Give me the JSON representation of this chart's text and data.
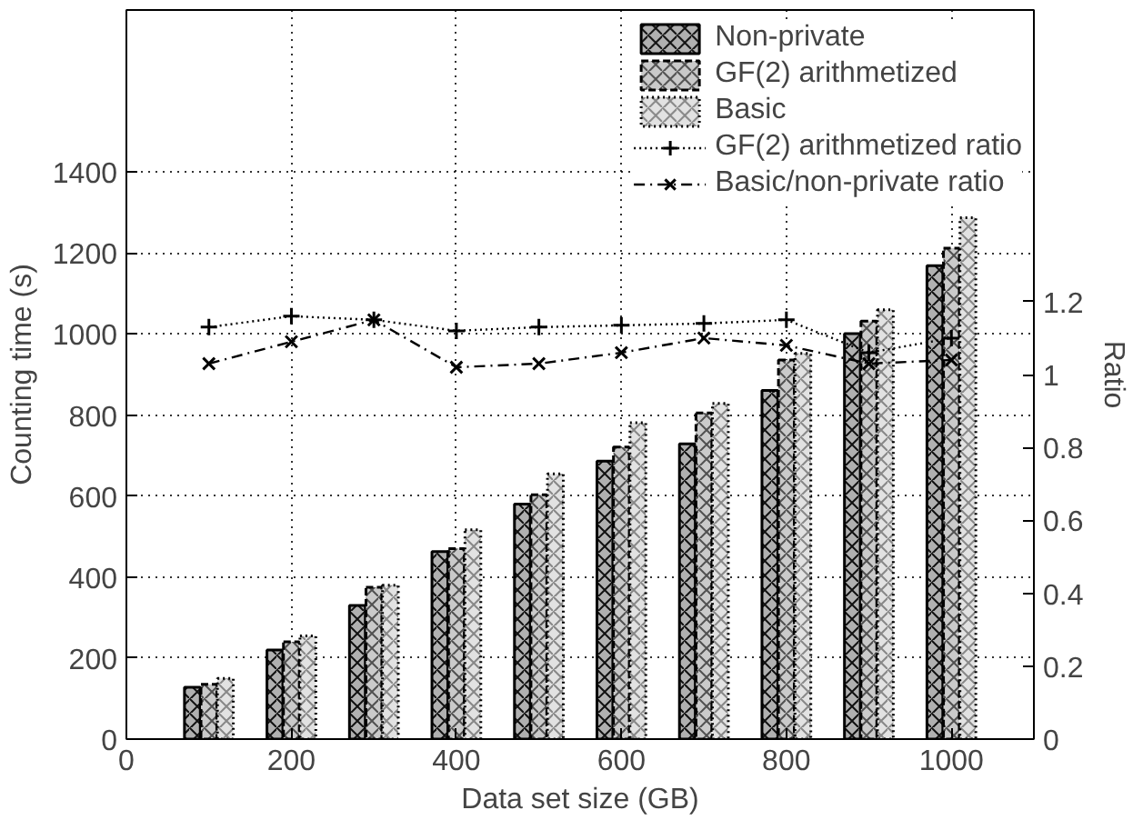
{
  "chart_data": {
    "type": "bar",
    "xlabel": "Data set size (GB)",
    "ylabel": "Counting time (s)",
    "y2label": "Ratio",
    "x": [
      100,
      200,
      300,
      400,
      500,
      600,
      700,
      800,
      900,
      1000
    ],
    "series": [
      {
        "name": "Non-private",
        "color": "#b0b0b0",
        "line_style": "solid",
        "values": [
          128,
          220,
          330,
          463,
          580,
          686,
          729,
          861,
          1001,
          1169
        ]
      },
      {
        "name": "GF(2) arithmetized",
        "color": "#cacaca",
        "line_style": "dashed",
        "values": [
          135,
          240,
          375,
          470,
          603,
          721,
          805,
          936,
          1032,
          1212
        ]
      },
      {
        "name": "Basic",
        "color": "#e2e2e2",
        "line_style": "dotted",
        "values": [
          150,
          255,
          380,
          517,
          655,
          781,
          829,
          952,
          1060,
          1287
        ]
      },
      {
        "name": "GF(2) arithmetized ratio",
        "type": "line",
        "axis": "y2",
        "color": "#000000",
        "line_style": "dotted",
        "marker": "cross",
        "values": [
          1.13,
          1.16,
          1.15,
          1.12,
          1.13,
          1.135,
          1.14,
          1.15,
          1.06,
          1.1
        ]
      },
      {
        "name": "Basic/non-private ratio",
        "type": "line",
        "axis": "y2",
        "color": "#000000",
        "line_style": "dashdot",
        "marker": "x",
        "values": [
          1.03,
          1.09,
          1.15,
          1.02,
          1.03,
          1.06,
          1.1,
          1.08,
          1.03,
          1.04
        ]
      }
    ],
    "xlim": [
      0,
      1100
    ],
    "xticks": [
      0,
      200,
      400,
      600,
      800,
      1000
    ],
    "ylim": [
      0,
      1800
    ],
    "yticks": [
      0,
      200,
      400,
      600,
      800,
      1000,
      1200,
      1400
    ],
    "y2lim": [
      0,
      2
    ],
    "y2ticks": [
      0,
      0.2,
      0.4,
      0.6,
      0.8,
      1,
      1.2
    ],
    "grid": true,
    "legend": "top right"
  }
}
